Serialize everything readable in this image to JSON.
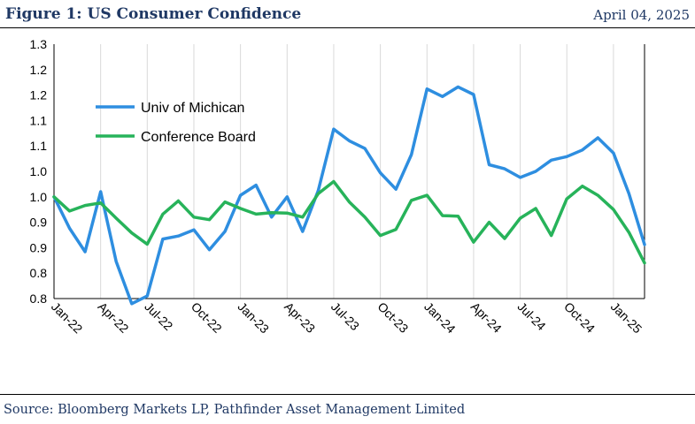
{
  "header": {
    "title": "Figure 1: US Consumer Confidence",
    "date": "April 04, 2025"
  },
  "footer": {
    "source": "Source: Bloomberg Markets LP, Pathfinder Asset Management Limited"
  },
  "chart_data": {
    "type": "line",
    "title": "",
    "xlabel": "",
    "ylabel": "",
    "ylim": [
      0.8,
      1.3
    ],
    "y_tick_labels": [
      "0.8",
      "0.8",
      "0.9",
      "0.9",
      "1.0",
      "1.0",
      "1.1",
      "1.1",
      "1.2",
      "1.2",
      "1.3"
    ],
    "x_tick_labels": [
      "Jan-22",
      "Apr-22",
      "Jul-22",
      "Oct-22",
      "Jan-23",
      "Apr-23",
      "Jul-23",
      "Oct-23",
      "Jan-24",
      "Apr-24",
      "Jul-24",
      "Oct-24",
      "Jan-25"
    ],
    "x": [
      "Jan-22",
      "Feb-22",
      "Mar-22",
      "Apr-22",
      "May-22",
      "Jun-22",
      "Jul-22",
      "Aug-22",
      "Sep-22",
      "Oct-22",
      "Nov-22",
      "Dec-22",
      "Jan-23",
      "Feb-23",
      "Mar-23",
      "Apr-23",
      "May-23",
      "Jun-23",
      "Jul-23",
      "Aug-23",
      "Sep-23",
      "Oct-23",
      "Nov-23",
      "Dec-23",
      "Jan-24",
      "Feb-24",
      "Mar-24",
      "Apr-24",
      "May-24",
      "Jun-24",
      "Jul-24",
      "Aug-24",
      "Sep-24",
      "Oct-24",
      "Nov-24",
      "Dec-24",
      "Jan-25",
      "Feb-25",
      "Mar-25"
    ],
    "grid": "vertical",
    "legend_position": "top-left",
    "series": [
      {
        "name": "Univ of Michican",
        "color": "#2e8ee0",
        "values": [
          1.0,
          0.938,
          0.892,
          1.01,
          0.873,
          0.79,
          0.805,
          0.917,
          0.923,
          0.935,
          0.896,
          0.932,
          1.003,
          1.023,
          0.96,
          1.0,
          0.932,
          1.012,
          1.133,
          1.11,
          1.095,
          1.047,
          1.015,
          1.083,
          1.212,
          1.197,
          1.216,
          1.201,
          1.063,
          1.055,
          1.038,
          1.05,
          1.072,
          1.079,
          1.092,
          1.116,
          1.086,
          1.006,
          0.906
        ]
      },
      {
        "name": "Conference Board",
        "color": "#27b35a",
        "values": [
          1.0,
          0.972,
          0.983,
          0.988,
          0.958,
          0.929,
          0.907,
          0.966,
          0.992,
          0.96,
          0.955,
          0.99,
          0.977,
          0.966,
          0.969,
          0.968,
          0.96,
          1.006,
          1.03,
          0.99,
          0.96,
          0.924,
          0.936,
          0.993,
          1.003,
          0.963,
          0.962,
          0.911,
          0.95,
          0.918,
          0.958,
          0.977,
          0.924,
          0.996,
          1.021,
          1.003,
          0.975,
          0.93,
          0.87
        ]
      }
    ]
  }
}
